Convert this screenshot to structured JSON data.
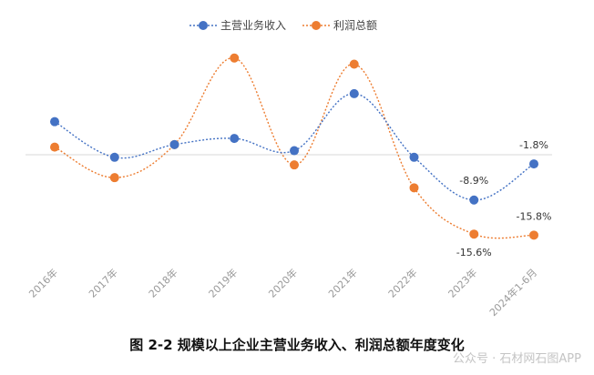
{
  "chart_data": {
    "type": "line",
    "title": "",
    "categories": [
      "2016年",
      "2017年",
      "2018年",
      "2019年",
      "2020年",
      "2021年",
      "2022年",
      "2023年",
      "2024年1-6月"
    ],
    "series": [
      {
        "name": "主营业务收入",
        "color": "#4472c4",
        "values": [
          6.5,
          -0.5,
          2.0,
          3.2,
          0.8,
          12.0,
          -0.5,
          -8.9,
          -1.8
        ]
      },
      {
        "name": "利润总额",
        "color": "#ed7d31",
        "values": [
          1.5,
          -4.5,
          2.0,
          19.0,
          -2.0,
          17.8,
          -6.5,
          -15.6,
          -15.8
        ]
      }
    ],
    "data_labels": [
      {
        "series": 0,
        "index": 7,
        "text": "-8.9%"
      },
      {
        "series": 0,
        "index": 8,
        "text": "-1.8%"
      },
      {
        "series": 1,
        "index": 7,
        "text": "-15.6%"
      },
      {
        "series": 1,
        "index": 8,
        "text": "-15.8%"
      }
    ],
    "ylim": [
      -22,
      22
    ],
    "grid": false,
    "legend": "top-center",
    "zero_line": true
  },
  "caption": "图 2-2  规模以上企业主营业务收入、利润总额年度变化",
  "watermark": "公众号 · 石材网石图APP"
}
